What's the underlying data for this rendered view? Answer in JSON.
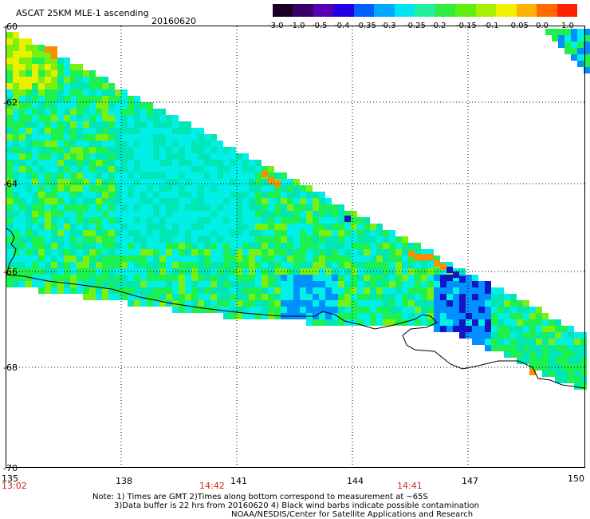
{
  "header": {
    "title": "ASCAT 25KM MLE-1 ascending",
    "date": "20160620"
  },
  "colorbar": {
    "labels": [
      "-3.0",
      "-1.0",
      "-0.5",
      "-0.4",
      "-0.35",
      "-0.3",
      "-0.25",
      "-0.2",
      "-0.15",
      "-0.1",
      "-0.05",
      "0.0",
      "1.0"
    ],
    "colors": [
      "#1a0025",
      "#3a006a",
      "#5a00b4",
      "#2000e6",
      "#0060ff",
      "#00a8ff",
      "#00e6f0",
      "#20f0a0",
      "#30ee40",
      "#60f010",
      "#a8f000",
      "#f0f000",
      "#ffb000",
      "#ff6a00",
      "#ff2000"
    ]
  },
  "map": {
    "lat_labels": [
      "-60",
      "-62",
      "-64",
      "-66",
      "-68",
      "-70"
    ],
    "lon_labels": [
      "135",
      "138",
      "141",
      "144",
      "147",
      "150"
    ],
    "time_labels": [
      "13:02",
      "14:42",
      "14:41"
    ],
    "palette": {
      "cyan": "#00f0e8",
      "aqua": "#00e6b4",
      "green": "#1ef050",
      "lime": "#7af010",
      "yellow": "#e8f000",
      "orange": "#ff8c00",
      "blue": "#0090ff",
      "darkblue": "#1414c8"
    }
  },
  "notes": {
    "line1": "Note: 1) Times are GMT 2)Times along bottom correspond to measurement at ~65S",
    "line2": "3)Data buffer is 22 hrs from 20160620 4) Black wind barbs indicate possible contamination",
    "line3": "NOAA/NESDIS/Center for Satellite Applications and Research"
  }
}
